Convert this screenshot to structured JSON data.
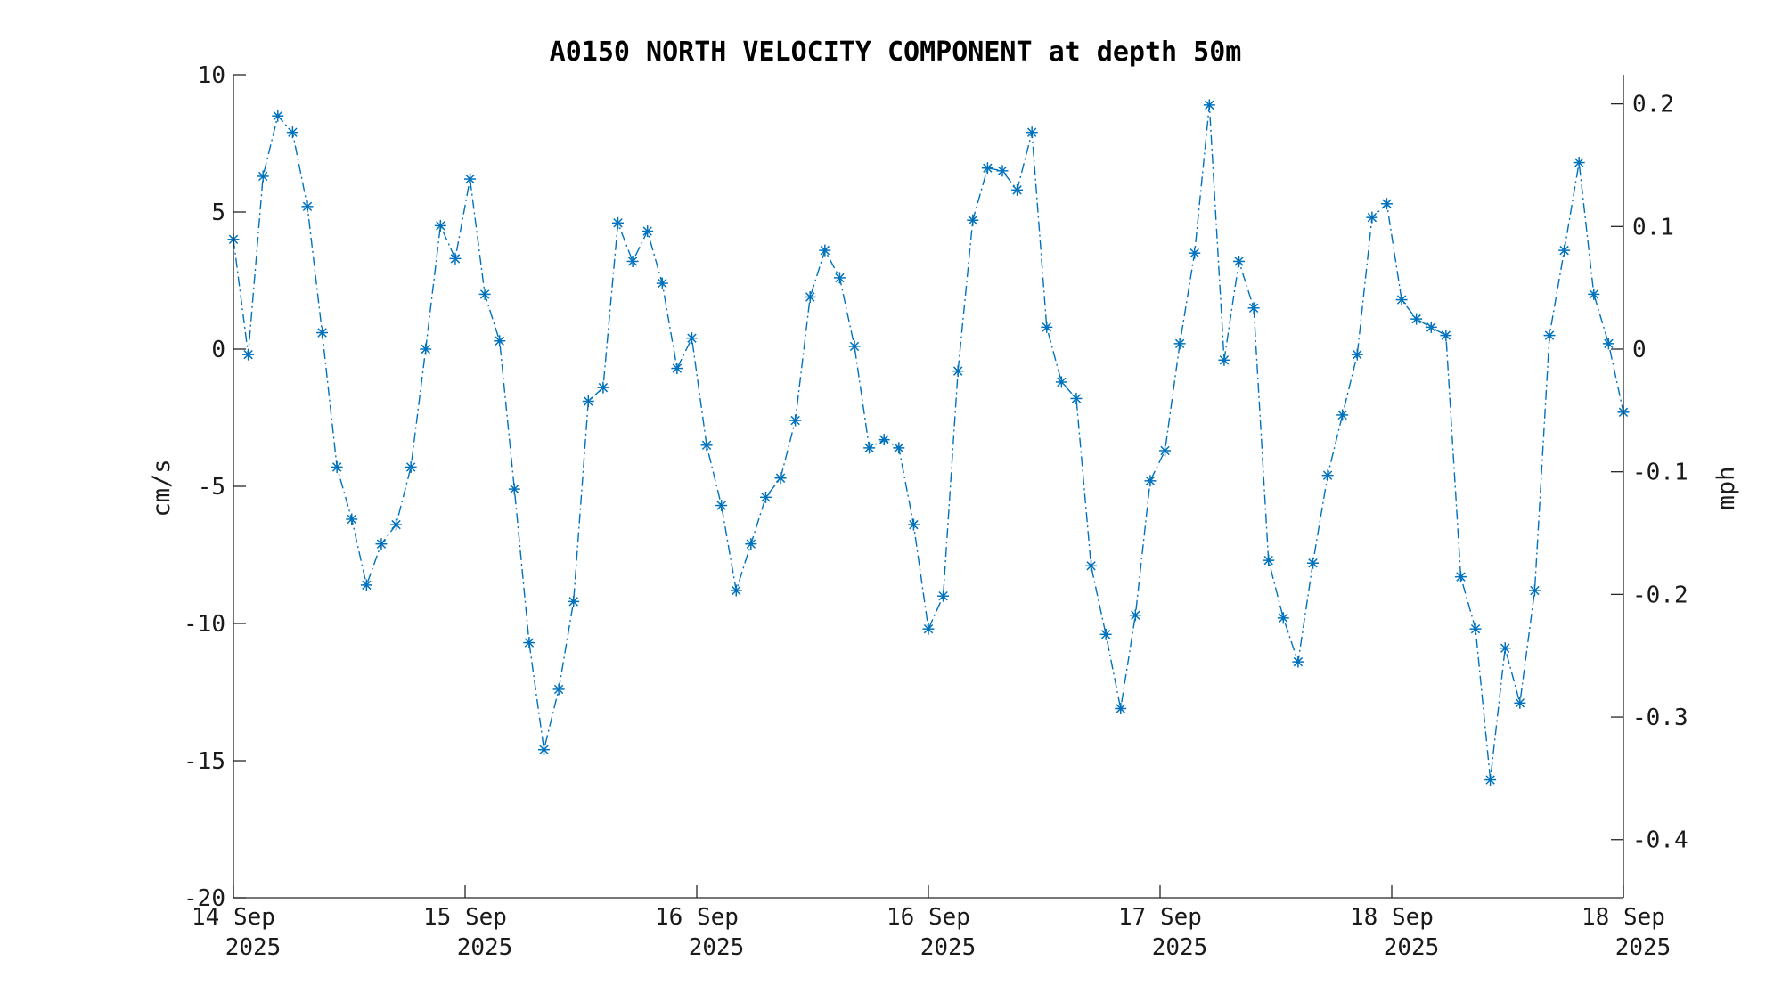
{
  "chart_data": {
    "type": "line",
    "title": "A0150 NORTH VELOCITY COMPONENT at depth 50m",
    "ylabel": "cm/s",
    "ylabel_right": "mph",
    "ylim": [
      -20,
      10
    ],
    "ylim_right": [
      -0.4474,
      0.2237
    ],
    "yticks": [
      "10",
      "5",
      "0",
      "-5",
      "-10",
      "-15",
      "-20"
    ],
    "yticks_right": [
      "0.2",
      "0.1",
      "0",
      "-0.1",
      "-0.2",
      "-0.3",
      "-0.4"
    ],
    "xticks": [
      {
        "day": "14 Sep",
        "year": "2025"
      },
      {
        "day": "15 Sep",
        "year": "2025"
      },
      {
        "day": "16 Sep",
        "year": "2025"
      },
      {
        "day": "16 Sep",
        "year": "2025"
      },
      {
        "day": "17 Sep",
        "year": "2025"
      },
      {
        "day": "18 Sep",
        "year": "2025"
      },
      {
        "day": "18 Sep",
        "year": "2025"
      }
    ],
    "grid": false,
    "marker": "asterisk",
    "line_style": "dash-dot",
    "color": "#0072bd",
    "series": [
      {
        "values": [
          4.0,
          -0.2,
          6.3,
          8.5,
          7.9,
          5.2,
          0.6,
          -4.3,
          -6.2,
          -8.6,
          -7.1,
          -6.4,
          -4.3,
          0.0,
          4.5,
          3.3,
          6.2,
          2.0,
          0.3,
          -5.1,
          -10.7,
          -14.6,
          -12.4,
          -9.2,
          -1.9,
          -1.4,
          4.6,
          3.2,
          4.3,
          2.4,
          -0.7,
          0.4,
          -3.5,
          -5.7,
          -8.8,
          -7.1,
          -5.4,
          -4.7,
          -2.6,
          1.9,
          3.6,
          2.6,
          0.1,
          -3.6,
          -3.3,
          -3.6,
          -6.4,
          -10.2,
          -9.0,
          -0.8,
          4.7,
          6.6,
          6.5,
          5.8,
          7.9,
          0.8,
          -1.2,
          -1.8,
          -7.9,
          -10.4,
          -13.1,
          -9.7,
          -4.8,
          -3.7,
          0.2,
          3.5,
          8.9,
          -0.4,
          3.2,
          1.5,
          -7.7,
          -9.8,
          -11.4,
          -7.8,
          -4.6,
          -2.4,
          -0.2,
          4.8,
          5.3,
          1.8,
          1.1,
          0.8,
          0.5,
          -8.3,
          -10.2,
          -15.7,
          -10.9,
          -12.9,
          -8.8,
          0.5,
          3.6,
          6.8,
          2.0,
          0.2,
          -2.3
        ]
      }
    ]
  }
}
